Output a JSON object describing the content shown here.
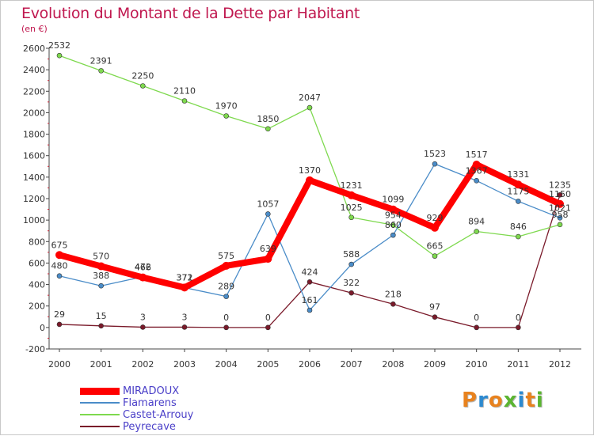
{
  "header": {
    "title": "Evolution du Montant de la Dette par Habitant",
    "unit": "(en €)"
  },
  "logo": {
    "letters": [
      "P",
      "r",
      "o",
      "x",
      "i",
      "t",
      "i"
    ],
    "colors": [
      "#e8821e",
      "#2d8ad0",
      "#e8821e",
      "#5bb531",
      "#2d8ad0",
      "#e8821e",
      "#5bb531"
    ]
  },
  "chart_data": {
    "type": "line",
    "title": "Evolution du Montant de la Dette par Habitant",
    "ylabel": "(en €)",
    "xlabel": "",
    "x": [
      "2000",
      "2001",
      "2002",
      "2003",
      "2004",
      "2005",
      "2006",
      "2007",
      "2008",
      "2009",
      "2010",
      "2011",
      "2012"
    ],
    "ylim": [
      -200,
      2600
    ],
    "yticks": [
      -200,
      0,
      200,
      400,
      600,
      800,
      1000,
      1200,
      1400,
      1600,
      1800,
      2000,
      2200,
      2400,
      2600
    ],
    "grid": false,
    "legend_position": "bottom-left",
    "series": [
      {
        "name": "MIRADOUX",
        "color": "#ff0000",
        "values": [
          675,
          570,
          466,
          372,
          575,
          639,
          1370,
          1231,
          1099,
          929,
          1517,
          1331,
          1150
        ],
        "labels": [
          "675",
          "570",
          "466",
          "372",
          "575",
          "639",
          "1370",
          "1231",
          "1099",
          "929",
          "1517",
          "1331",
          "1150"
        ]
      },
      {
        "name": "Flamarens",
        "color": "#4a8cc8",
        "values": [
          480,
          388,
          472,
          371,
          289,
          1057,
          161,
          588,
          860,
          1523,
          1367,
          1175,
          1021
        ],
        "labels": [
          "480",
          "388",
          "472",
          "371",
          "289",
          "1057",
          "161",
          "588",
          "860",
          "1523",
          "1367",
          "1175",
          "1021"
        ]
      },
      {
        "name": "Castet-Arrouy",
        "color": "#7ed94e",
        "values": [
          2532,
          2391,
          2250,
          2110,
          1970,
          1850,
          2047,
          1025,
          954,
          665,
          894,
          846,
          958
        ],
        "labels": [
          "2532",
          "2391",
          "2250",
          "2110",
          "1970",
          "1850",
          "2047",
          "1025",
          "954",
          "665",
          "894",
          "846",
          "958"
        ]
      },
      {
        "name": "Peyrecave",
        "color": "#7a1a2a",
        "values": [
          29,
          15,
          3,
          3,
          0,
          0,
          424,
          322,
          218,
          97,
          0,
          0,
          1235
        ],
        "labels": [
          "29",
          "15",
          "3",
          "3",
          "0",
          "0",
          "424",
          "322",
          "218",
          "97",
          "0",
          "0",
          "1235"
        ]
      }
    ]
  }
}
